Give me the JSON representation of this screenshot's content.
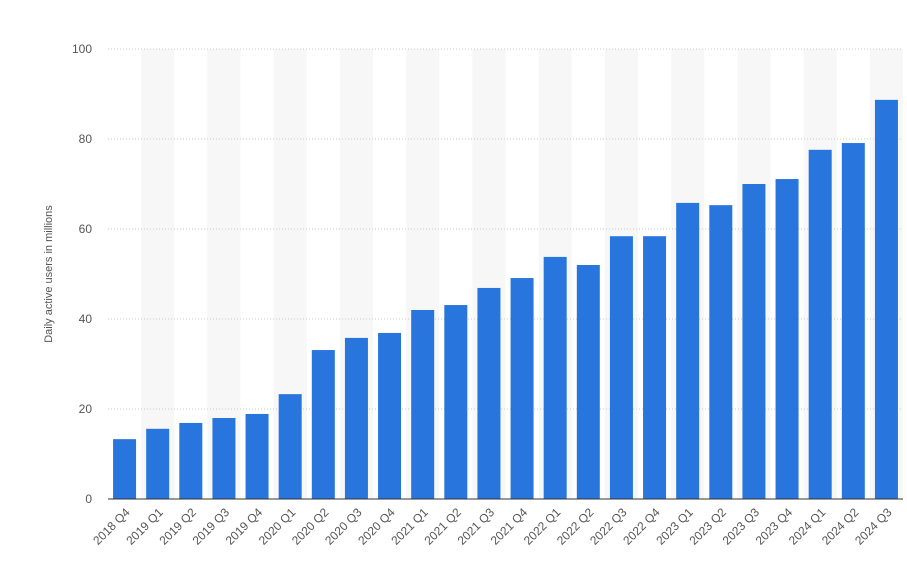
{
  "chart_data": {
    "type": "bar",
    "y_label": "Daily active users in millions",
    "categories": [
      "2018 Q4",
      "2019 Q1",
      "2019 Q2",
      "2019 Q3",
      "2019 Q4",
      "2020 Q1",
      "2020 Q2",
      "2020 Q3",
      "2020 Q4",
      "2021 Q1",
      "2021 Q2",
      "2021 Q3",
      "2021 Q4",
      "2022 Q1",
      "2022 Q2",
      "2022 Q3",
      "2022 Q4",
      "2023 Q1",
      "2023 Q2",
      "2023 Q3",
      "2023 Q4",
      "2024 Q1",
      "2024 Q2",
      "2024 Q3"
    ],
    "values": [
      13.3,
      15.6,
      16.9,
      18,
      18.9,
      23.3,
      33.1,
      35.8,
      36.9,
      42,
      43.1,
      46.9,
      49.1,
      53.8,
      52,
      58.4,
      58.4,
      65.8,
      65.3,
      70,
      71.1,
      77.6,
      79.1,
      88.7
    ],
    "color": "#2876dd",
    "ylim": [
      0,
      100
    ],
    "yticks": [
      0,
      20,
      40,
      60,
      80,
      100
    ],
    "grid": true
  }
}
